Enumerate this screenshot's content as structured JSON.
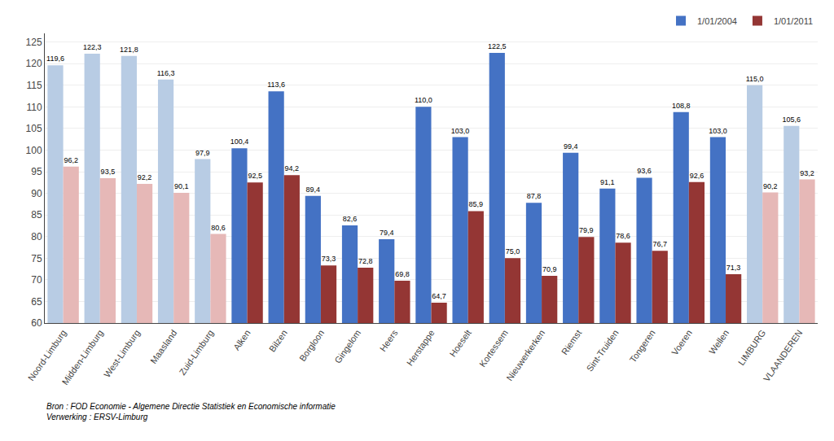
{
  "chart_data": {
    "type": "bar",
    "categories": [
      "Noord-Limburg",
      "Midden-Limburg",
      "West-Limburg",
      "Maasland",
      "Zuid-Limburg",
      "Alken",
      "Bilzen",
      "Borgloon",
      "Gingelom",
      "Heers",
      "Herstappe",
      "Hoeselt",
      "Kortessem",
      "Nieuwerkerken",
      "Riemst",
      "Sint-Truiden",
      "Tongeren",
      "Voeren",
      "Wellen",
      "LIMBURG",
      "VLAANDEREN"
    ],
    "series": [
      {
        "name": "1/01/2004",
        "color": "#4472C4",
        "colors": [
          "#B8CCE4",
          "#B8CCE4",
          "#B8CCE4",
          "#B8CCE4",
          "#B8CCE4",
          "#4472C4",
          "#4472C4",
          "#4472C4",
          "#4472C4",
          "#4472C4",
          "#4472C4",
          "#4472C4",
          "#4472C4",
          "#4472C4",
          "#4472C4",
          "#4472C4",
          "#4472C4",
          "#4472C4",
          "#4472C4",
          "#B8CCE4",
          "#B8CCE4"
        ],
        "values": [
          119.6,
          122.3,
          121.8,
          116.3,
          97.9,
          100.4,
          113.6,
          89.4,
          82.6,
          79.4,
          110.0,
          103.0,
          122.5,
          87.8,
          99.4,
          91.1,
          93.6,
          108.8,
          103.0,
          115.0,
          105.6
        ],
        "value_labels": [
          "119,6",
          "122,3",
          "121,8",
          "116,3",
          "97,9",
          "100,4",
          "113,6",
          "89,4",
          "82,6",
          "79,4",
          "110,0",
          "103,0",
          "122,5",
          "87,8",
          "99,4",
          "91,1",
          "93,6",
          "108,8",
          "103,0",
          "115,0",
          "105,6"
        ]
      },
      {
        "name": "1/01/2011",
        "color": "#943634",
        "colors": [
          "#E6B8B7",
          "#E6B8B7",
          "#E6B8B7",
          "#E6B8B7",
          "#E6B8B7",
          "#943634",
          "#943634",
          "#943634",
          "#943634",
          "#943634",
          "#943634",
          "#943634",
          "#943634",
          "#943634",
          "#943634",
          "#943634",
          "#943634",
          "#943634",
          "#943634",
          "#E6B8B7",
          "#E6B8B7"
        ],
        "values": [
          96.2,
          93.5,
          92.2,
          90.1,
          80.6,
          92.5,
          94.2,
          73.3,
          72.8,
          69.8,
          64.7,
          85.9,
          75.0,
          70.9,
          79.9,
          78.6,
          76.7,
          92.6,
          71.3,
          90.2,
          93.2
        ],
        "value_labels": [
          "96,2",
          "93,5",
          "92,2",
          "90,1",
          "80,6",
          "92,5",
          "94,2",
          "73,3",
          "72,8",
          "69,8",
          "64,7",
          "85,9",
          "75,0",
          "70,9",
          "79,9",
          "78,6",
          "76,7",
          "92,6",
          "71,3",
          "90,2",
          "93,2"
        ]
      }
    ],
    "ylim": [
      60,
      127
    ],
    "yticks": [
      60,
      65,
      70,
      75,
      80,
      85,
      90,
      95,
      100,
      105,
      110,
      115,
      120,
      125
    ],
    "grid": true,
    "legend": "upper right",
    "data_labels": true,
    "annotations": [
      "Bron : FOD Economie - Algemene Directie Statistiek en Economische informatie\nVerwerking : ERSV-Limburg"
    ]
  }
}
